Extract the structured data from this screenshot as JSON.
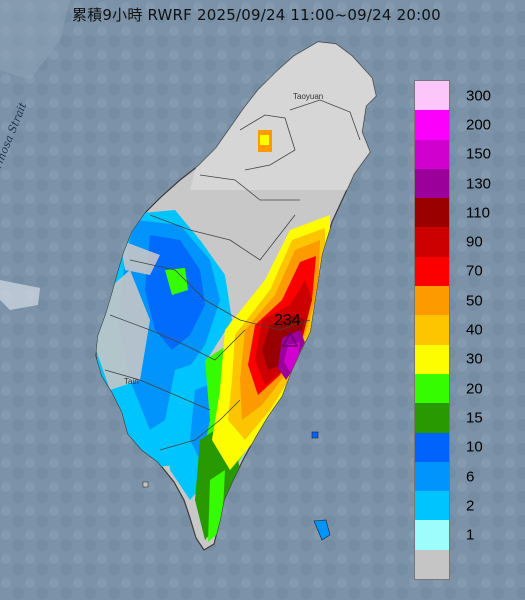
{
  "title": "累積9小時 RWRF 2025/09/24 11:00~09/24 20:00",
  "strait_label": "Formosa Strait",
  "city_labels": {
    "north": "Taoyuan",
    "south": "Tain"
  },
  "max_value": "234",
  "legend": {
    "labels": [
      "300",
      "200",
      "150",
      "130",
      "110",
      "90",
      "70",
      "50",
      "40",
      "30",
      "20",
      "15",
      "10",
      "6",
      "2",
      "1"
    ],
    "colors": [
      "#fdc6fb",
      "#fb00fb",
      "#d000cf",
      "#9b009b",
      "#9b0000",
      "#cd0000",
      "#fc0000",
      "#fc9a00",
      "#fcc500",
      "#fdfd00",
      "#36fc00",
      "#289a00",
      "#0064fc",
      "#0094fc",
      "#00c4fe",
      "#9dfcfc",
      "#c5c5c5"
    ]
  }
}
